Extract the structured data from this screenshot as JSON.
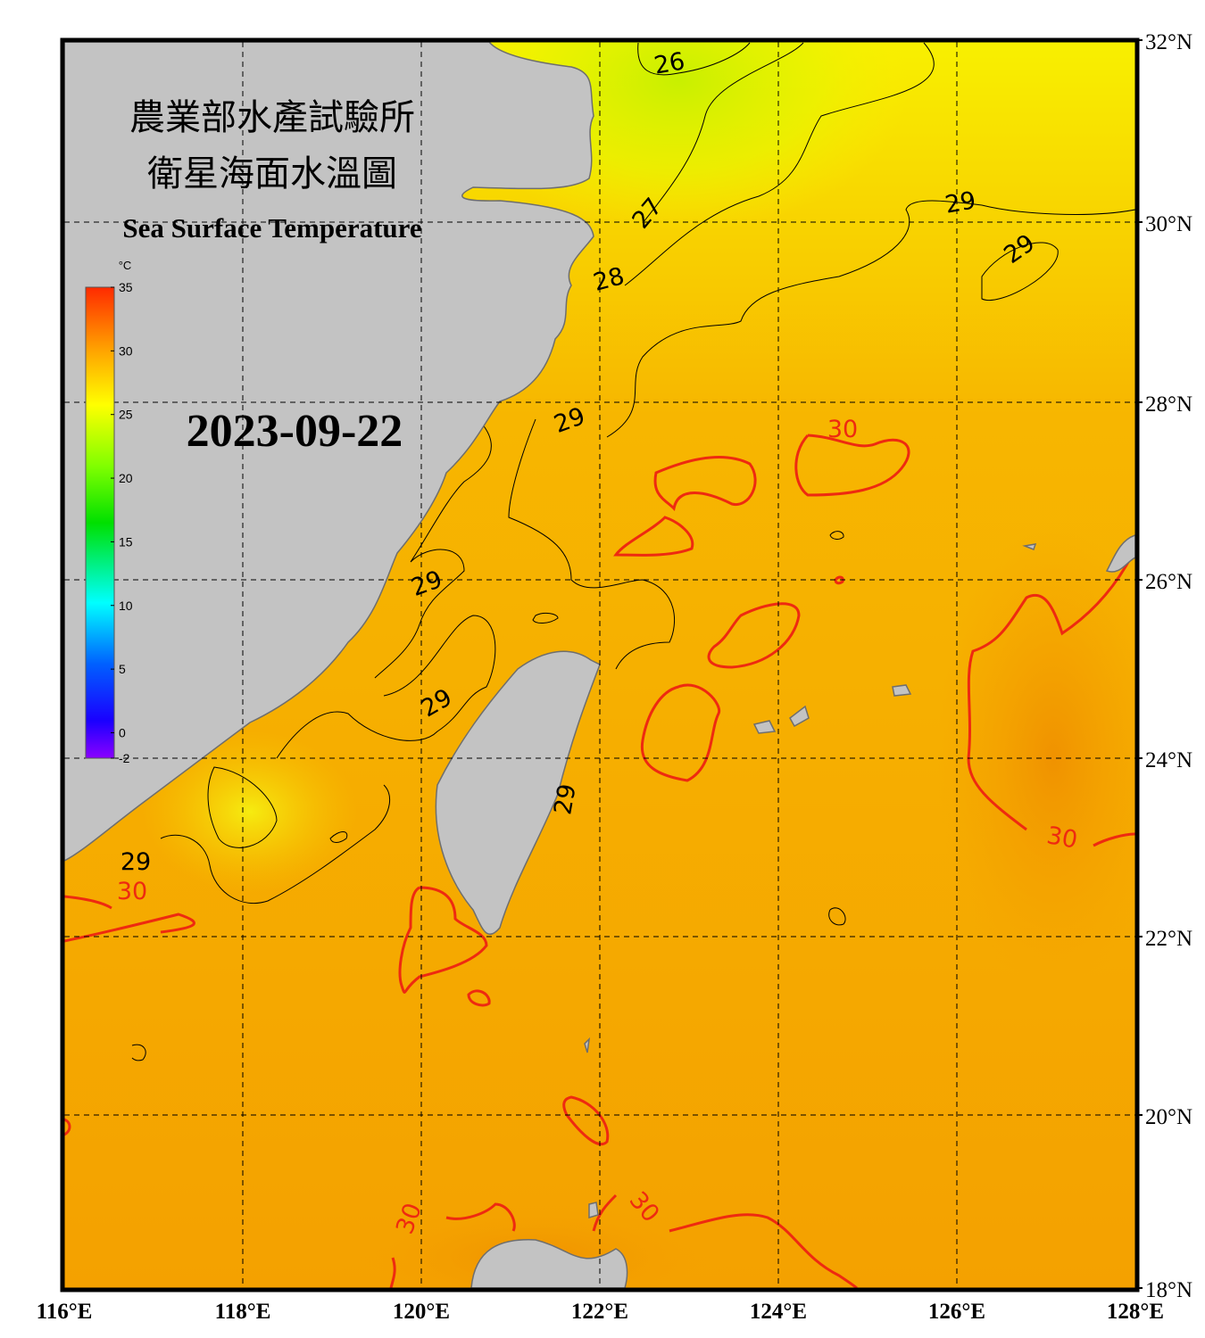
{
  "map": {
    "title": [
      "農業部水產試驗所",
      "衛星海面水溫圖"
    ],
    "subtitle": "Sea Surface Temperature",
    "date": "2023-09-22",
    "colorbar": {
      "unit": "°C",
      "range": [
        -2,
        35
      ],
      "ticks": [
        35,
        30,
        25,
        20,
        15,
        10,
        5,
        0,
        -2
      ]
    },
    "lon_labels": [
      "116°E",
      "118°E",
      "120°E",
      "122°E",
      "124°E",
      "126°E",
      "128°E"
    ],
    "lat_labels": [
      "32°N",
      "30°N",
      "28°N",
      "26°N",
      "24°N",
      "22°N",
      "20°N",
      "18°N"
    ],
    "contour_labels": [
      {
        "text": "26",
        "color": "#000000"
      },
      {
        "text": "27",
        "color": "#000000"
      },
      {
        "text": "28",
        "color": "#000000"
      },
      {
        "text": "29",
        "color": "#000000"
      },
      {
        "text": "29",
        "color": "#000000"
      },
      {
        "text": "29",
        "color": "#000000"
      },
      {
        "text": "29",
        "color": "#000000"
      },
      {
        "text": "29",
        "color": "#000000"
      },
      {
        "text": "29",
        "color": "#000000"
      },
      {
        "text": "29",
        "color": "#000000"
      },
      {
        "text": "30",
        "color": "#ee2a10"
      },
      {
        "text": "30",
        "color": "#ee2a10"
      },
      {
        "text": "30",
        "color": "#ee2a10"
      },
      {
        "text": "30",
        "color": "#ee2a10"
      },
      {
        "text": "30",
        "color": "#ee2a10"
      }
    ]
  }
}
